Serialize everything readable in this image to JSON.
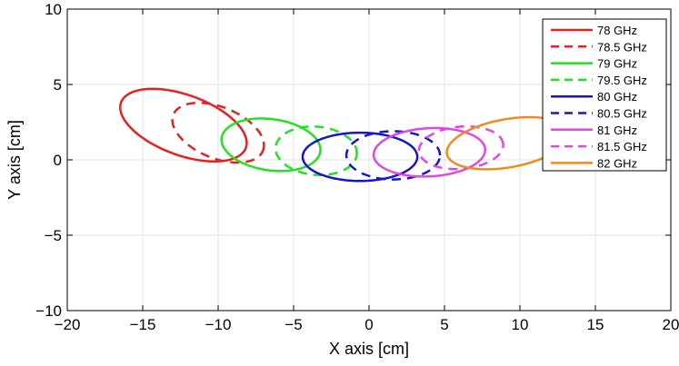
{
  "chart_data": {
    "type": "line",
    "xlabel": "X axis [cm]",
    "ylabel": "Y axis [cm]",
    "xlim": [
      -20,
      20
    ],
    "ylim": [
      -10,
      10
    ],
    "xticks": [
      -20,
      -15,
      -10,
      -5,
      0,
      5,
      10,
      15,
      20
    ],
    "yticks": [
      -10,
      -5,
      0,
      5,
      10
    ],
    "xtick_labels": [
      "−20",
      "−15",
      "−10",
      "−5",
      "0",
      "5",
      "10",
      "15",
      "20"
    ],
    "ytick_labels": [
      "−10",
      "−5",
      "0",
      "5",
      "10"
    ],
    "grid": true,
    "legend_position": "top-right",
    "series": [
      {
        "name": "78 GHz",
        "color": "#e82020",
        "dash": "solid",
        "ellipse": {
          "cx": -12.3,
          "cy": 2.3,
          "rx": 4.4,
          "ry": 2.0,
          "angle_deg": -20
        }
      },
      {
        "name": "78.5 GHz",
        "color": "#e82020",
        "dash": "dashed",
        "ellipse": {
          "cx": -10.0,
          "cy": 1.8,
          "rx": 3.2,
          "ry": 1.7,
          "angle_deg": -22
        }
      },
      {
        "name": "79 GHz",
        "color": "#22e022",
        "dash": "solid",
        "ellipse": {
          "cx": -6.5,
          "cy": 1.0,
          "rx": 3.3,
          "ry": 1.7,
          "angle_deg": -8
        }
      },
      {
        "name": "79.5 GHz",
        "color": "#22e022",
        "dash": "dashed",
        "ellipse": {
          "cx": -3.5,
          "cy": 0.6,
          "rx": 2.7,
          "ry": 1.6,
          "angle_deg": -5
        }
      },
      {
        "name": "80 GHz",
        "color": "#1515cc",
        "dash": "solid",
        "ellipse": {
          "cx": -0.6,
          "cy": 0.2,
          "rx": 3.8,
          "ry": 1.6,
          "angle_deg": 0
        }
      },
      {
        "name": "80.5 GHz",
        "color": "#1515cc",
        "dash": "dashed",
        "ellipse": {
          "cx": 1.6,
          "cy": 0.3,
          "rx": 3.1,
          "ry": 1.6,
          "angle_deg": 0
        }
      },
      {
        "name": "81 GHz",
        "color": "#e545e5",
        "dash": "solid",
        "ellipse": {
          "cx": 4.0,
          "cy": 0.5,
          "rx": 3.7,
          "ry": 1.6,
          "angle_deg": 3
        }
      },
      {
        "name": "81.5 GHz",
        "color": "#e545e5",
        "dash": "dashed",
        "ellipse": {
          "cx": 6.1,
          "cy": 0.8,
          "rx": 2.8,
          "ry": 1.4,
          "angle_deg": 5
        }
      },
      {
        "name": "82 GHz",
        "color": "#f08a20",
        "dash": "solid",
        "ellipse": {
          "cx": 9.2,
          "cy": 1.1,
          "rx": 4.1,
          "ry": 1.6,
          "angle_deg": 10
        }
      }
    ]
  }
}
